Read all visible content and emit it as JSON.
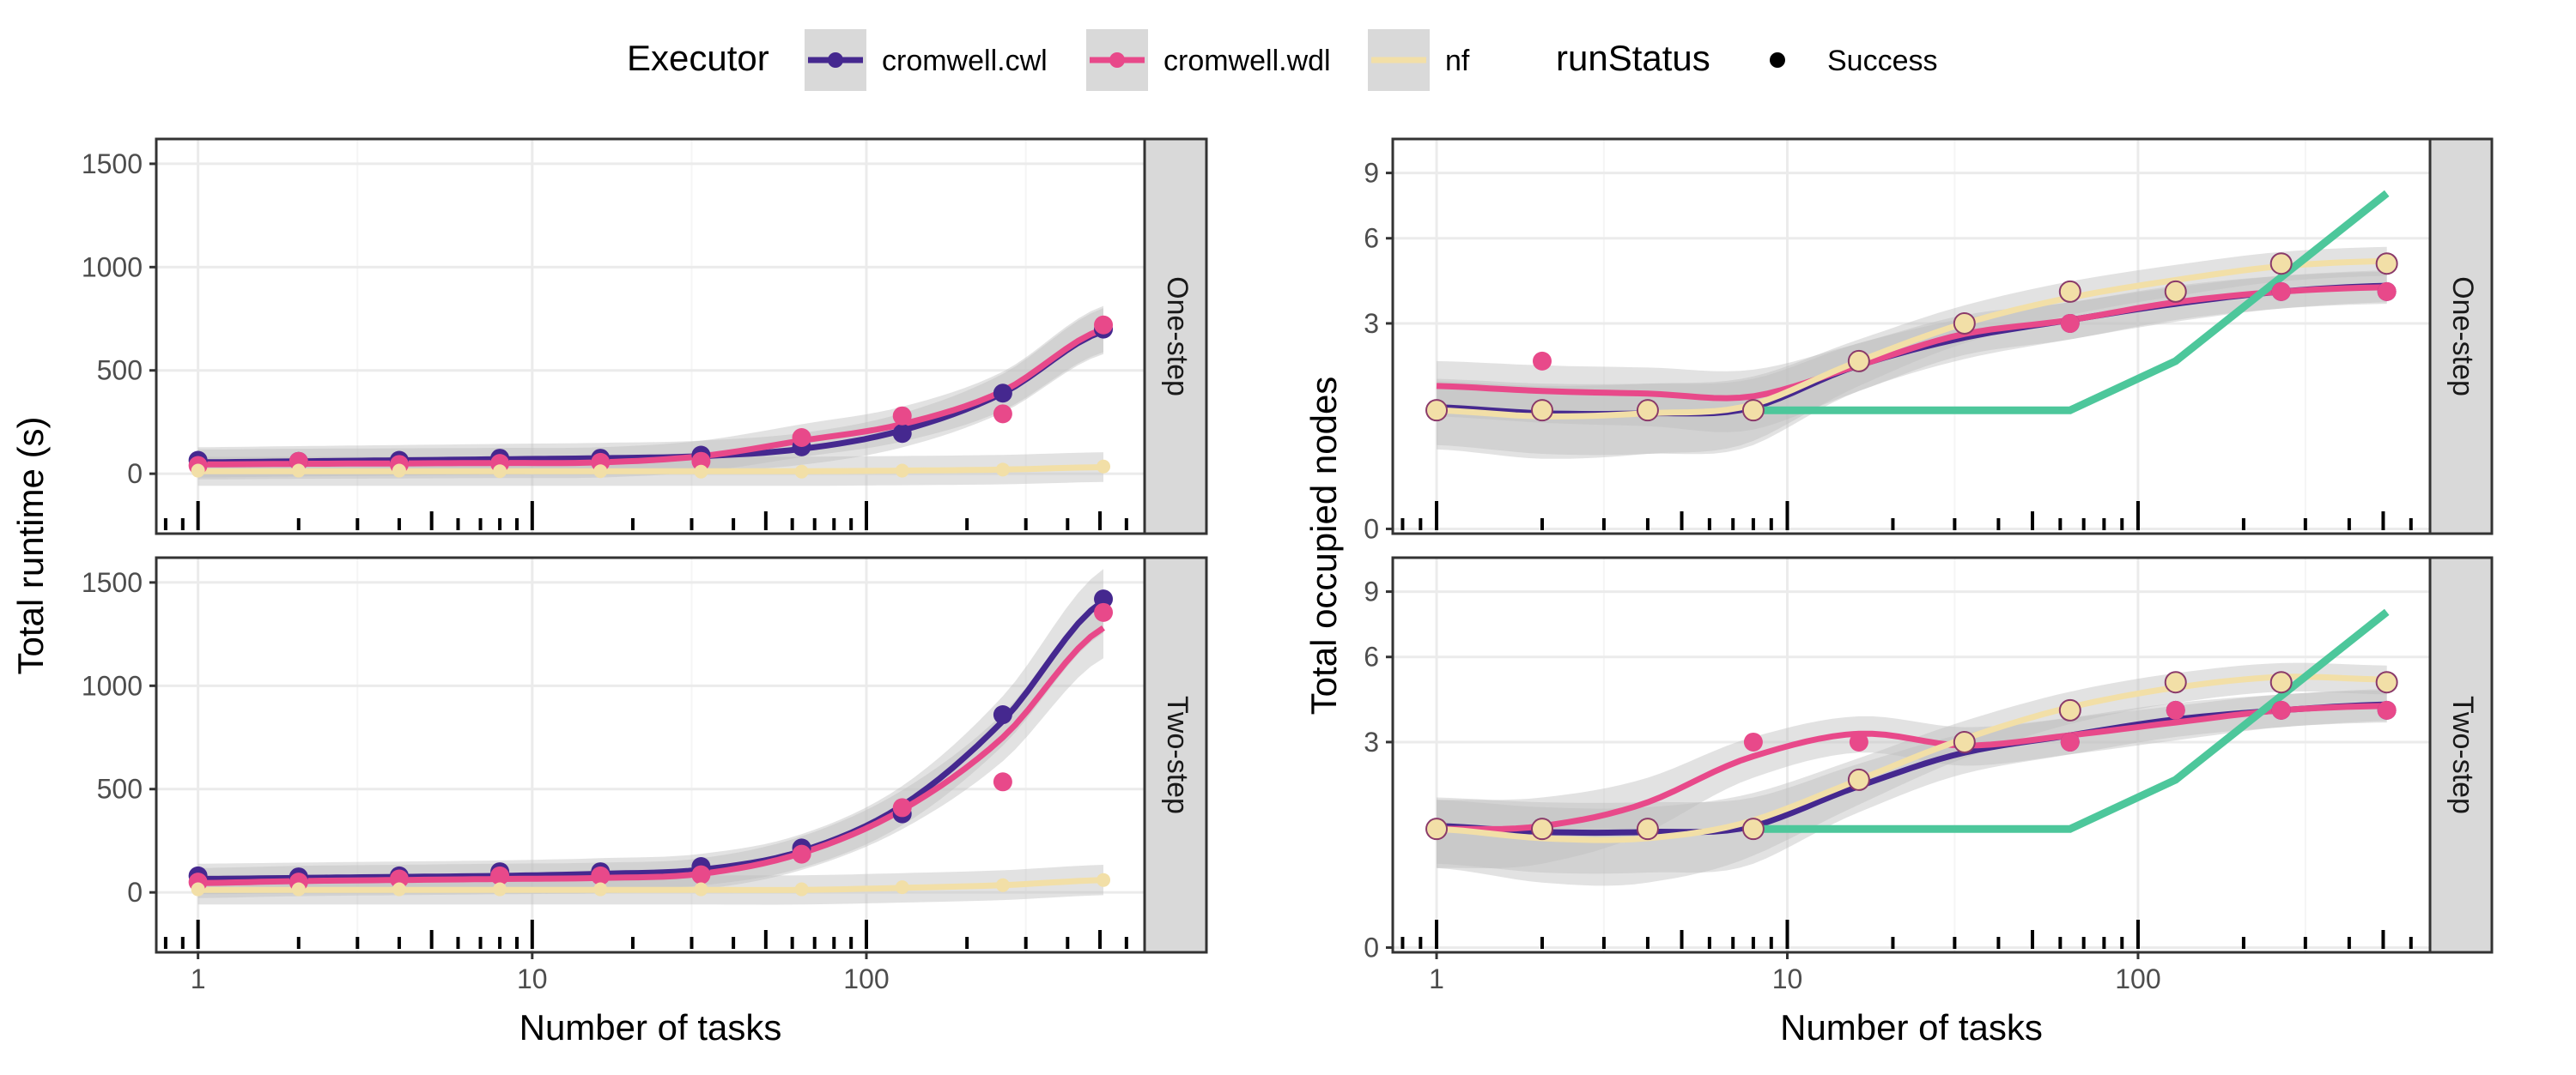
{
  "legend": {
    "executor_title": "Executor",
    "status_title": "runStatus",
    "items": [
      {
        "label": "cromwell.cwl",
        "color": "#45288f"
      },
      {
        "label": "cromwell.wdl",
        "color": "#e8498a"
      },
      {
        "label": "nf",
        "color": "#f2dfa7"
      }
    ],
    "status_items": [
      {
        "label": "Success"
      }
    ]
  },
  "colors": {
    "ribbon": "#bfbfbf",
    "extra_line": "#4dc79b",
    "strip_bg": "#d9d9d9",
    "grid_major": "#ebebeb",
    "grid_minor": "#f5f5f5"
  },
  "chart_data": [
    {
      "type": "scatter",
      "panel": "One-step",
      "column": "runtime",
      "xlabel": "Number of tasks",
      "ylabel": "Total runtime (s)",
      "x_scale": "log10",
      "xlim": [
        0.75,
        680
      ],
      "ylim": [
        -290,
        1620
      ],
      "yticks": [
        0,
        500,
        1000,
        1500
      ],
      "xticks": [
        1,
        10,
        100
      ],
      "series": [
        {
          "name": "cromwell.cwl",
          "x": [
            1,
            2,
            4,
            8,
            16,
            32,
            64,
            128,
            256,
            512
          ],
          "y": [
            65,
            60,
            65,
            75,
            75,
            90,
            130,
            195,
            390,
            700
          ],
          "smooth": [
            55,
            60,
            65,
            70,
            75,
            85,
            120,
            210,
            390,
            690
          ]
        },
        {
          "name": "cromwell.wdl",
          "x": [
            1,
            2,
            4,
            8,
            16,
            32,
            64,
            128,
            256,
            512
          ],
          "y": [
            40,
            60,
            45,
            50,
            55,
            60,
            175,
            280,
            290,
            720
          ],
          "smooth": [
            45,
            48,
            50,
            52,
            55,
            85,
            160,
            240,
            400,
            700
          ]
        },
        {
          "name": "nf",
          "x": [
            1,
            2,
            4,
            8,
            16,
            32,
            64,
            128,
            256,
            512
          ],
          "y": [
            15,
            15,
            15,
            12,
            12,
            10,
            10,
            15,
            20,
            35
          ],
          "smooth": [
            12,
            12,
            12,
            12,
            12,
            12,
            12,
            15,
            20,
            32
          ]
        }
      ]
    },
    {
      "type": "scatter",
      "panel": "One-step",
      "column": "nodes",
      "xlabel": "Number of tasks",
      "ylabel": "Total occupied nodes",
      "x_scale": "log10",
      "y_scale": "sqrt",
      "xlim": [
        0.75,
        680
      ],
      "ylim": [
        -0.05,
        10.8
      ],
      "yticks": [
        0,
        3,
        6,
        9
      ],
      "xticks": [
        1,
        10,
        100
      ],
      "series": [
        {
          "name": "cromwell.cwl",
          "x": [
            1,
            2,
            4,
            8,
            16,
            32,
            64,
            128,
            256,
            512
          ],
          "y": [
            1,
            1,
            1,
            1,
            2,
            3,
            3,
            4,
            4,
            4
          ],
          "smooth": [
            1.05,
            0.95,
            0.95,
            1.05,
            1.9,
            2.6,
            3.1,
            3.6,
            4.0,
            4.2
          ]
        },
        {
          "name": "cromwell.wdl",
          "x": [
            1,
            2,
            4,
            8,
            16,
            32,
            64,
            128,
            256,
            512
          ],
          "y": [
            1,
            2,
            1,
            1,
            2,
            3,
            3,
            4,
            4,
            4
          ],
          "smooth": [
            1.45,
            1.35,
            1.3,
            1.25,
            1.9,
            2.7,
            3.1,
            3.65,
            4.0,
            4.15
          ]
        },
        {
          "name": "nf",
          "x": [
            1,
            2,
            4,
            8,
            16,
            32,
            64,
            128,
            256,
            512
          ],
          "y": [
            1,
            1,
            1,
            1,
            2,
            3,
            4,
            4,
            5,
            5
          ],
          "smooth": [
            1.0,
            0.9,
            0.95,
            1.1,
            2.0,
            3.0,
            3.8,
            4.4,
            4.9,
            5.1
          ]
        },
        {
          "name": "",
          "x": [
            8,
            64,
            128,
            512
          ],
          "y": [
            1,
            1,
            2,
            8
          ],
          "line_only": true
        }
      ]
    },
    {
      "type": "scatter",
      "panel": "Two-step",
      "column": "runtime",
      "xlabel": "Number of tasks",
      "ylabel": "Total runtime (s)",
      "x_scale": "log10",
      "xlim": [
        0.75,
        680
      ],
      "ylim": [
        -290,
        1620
      ],
      "yticks": [
        0,
        500,
        1000,
        1500
      ],
      "xticks": [
        1,
        10,
        100
      ],
      "series": [
        {
          "name": "cromwell.cwl",
          "x": [
            1,
            2,
            4,
            8,
            16,
            32,
            64,
            128,
            256,
            512
          ],
          "y": [
            80,
            75,
            80,
            100,
            100,
            125,
            215,
            380,
            860,
            1420
          ],
          "smooth": [
            65,
            70,
            75,
            80,
            90,
            110,
            200,
            420,
            830,
            1410
          ]
        },
        {
          "name": "cromwell.wdl",
          "x": [
            1,
            2,
            4,
            8,
            16,
            32,
            64,
            128,
            256,
            512
          ],
          "y": [
            50,
            50,
            65,
            80,
            80,
            85,
            185,
            410,
            535,
            1355
          ],
          "smooth": [
            45,
            55,
            60,
            65,
            70,
            90,
            190,
            400,
            750,
            1280
          ]
        },
        {
          "name": "nf",
          "x": [
            1,
            2,
            4,
            8,
            16,
            32,
            64,
            128,
            256,
            512
          ],
          "y": [
            15,
            15,
            15,
            15,
            15,
            15,
            15,
            25,
            35,
            60
          ],
          "smooth": [
            12,
            12,
            12,
            12,
            12,
            12,
            12,
            22,
            35,
            60
          ]
        }
      ]
    },
    {
      "type": "scatter",
      "panel": "Two-step",
      "column": "nodes",
      "xlabel": "Number of tasks",
      "ylabel": "Total occupied nodes",
      "x_scale": "log10",
      "y_scale": "sqrt",
      "xlim": [
        0.75,
        680
      ],
      "ylim": [
        -0.05,
        10.8
      ],
      "yticks": [
        0,
        3,
        6,
        9
      ],
      "xticks": [
        1,
        10,
        100
      ],
      "series": [
        {
          "name": "cromwell.cwl",
          "x": [
            1,
            2,
            4,
            8,
            16,
            32,
            64,
            128,
            256,
            512
          ],
          "y": [
            1,
            1,
            1,
            1,
            2,
            3,
            3,
            4,
            4,
            4
          ],
          "smooth": [
            1.05,
            0.95,
            0.95,
            1.05,
            1.85,
            2.7,
            3.2,
            3.7,
            4.0,
            4.2
          ]
        },
        {
          "name": "cromwell.wdl",
          "x": [
            1,
            2,
            4,
            8,
            16,
            32,
            64,
            128,
            256,
            512
          ],
          "y": [
            1,
            1,
            1,
            3,
            3,
            3,
            3,
            4,
            4,
            4
          ],
          "smooth": [
            1.0,
            1.05,
            1.5,
            2.6,
            3.25,
            2.9,
            3.2,
            3.6,
            4.0,
            4.15
          ]
        },
        {
          "name": "nf",
          "x": [
            1,
            2,
            4,
            8,
            16,
            32,
            64,
            128,
            256,
            512
          ],
          "y": [
            1,
            1,
            1,
            1,
            2,
            3,
            4,
            5,
            5,
            5
          ],
          "smooth": [
            1.0,
            0.85,
            0.85,
            1.15,
            2.0,
            3.1,
            4.1,
            4.8,
            5.2,
            5.1
          ]
        },
        {
          "name": "",
          "x": [
            8,
            64,
            128,
            512
          ],
          "y": [
            1,
            1,
            2,
            8
          ],
          "line_only": true
        }
      ]
    }
  ]
}
